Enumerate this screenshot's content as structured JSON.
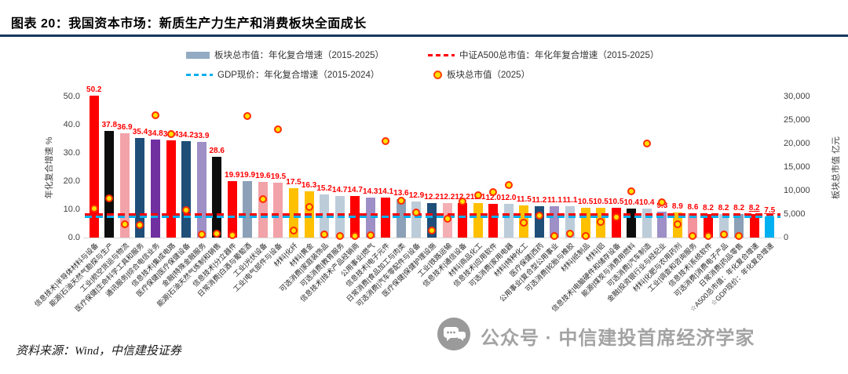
{
  "header": {
    "title": "图表 20：我国资本市场：新质生产力生产和消费板块全面成长"
  },
  "footer": {
    "source": "资料来源：Wind，中信建投证券",
    "watermark": "公众号 · 中信建投首席经济学家"
  },
  "chart_data": {
    "type": "bar",
    "title": "图表 20：我国资本市场：新质生产力生产和消费板块全面成长",
    "ylabel_left": "年化复合增速 %",
    "ylabel_right": "板块总市值 亿元",
    "ylim_left": [
      0,
      50
    ],
    "ylim_right": [
      0,
      30000
    ],
    "yticks_left": [
      "0.0",
      "10.0",
      "20.0",
      "30.0",
      "40.0",
      "50.0"
    ],
    "yticks_right": [
      "0",
      "5,000",
      "10,000",
      "15,000",
      "20,000",
      "25,000",
      "30,000"
    ],
    "grid": false,
    "legend_position": "top",
    "legend": [
      {
        "symbol": "bar-swatch",
        "color": "#92ABC3",
        "label": "板块总市值：年化复合增速（2015-2025）"
      },
      {
        "symbol": "dashed-line",
        "color": "#FF0000",
        "label": "中证A500总市值：年化年复合增速（2015-2025）"
      },
      {
        "symbol": "dashed-line",
        "color": "#00B0F0",
        "label": "GDP现价：年化复合增速（2015-2024）"
      },
      {
        "symbol": "dot",
        "color": "#FFE100",
        "label": "板块总市值（2025）"
      }
    ],
    "reference_lines": [
      {
        "name": "中证A500总市值年化复合增速",
        "value": 8.2,
        "color": "#FF0000"
      },
      {
        "name": "GDP现价年化复合增速",
        "value": 7.5,
        "color": "#00B0F0"
      }
    ],
    "value_label_color": "#FF0000",
    "bars": [
      {
        "label": "信息技术|半导体材料与设备",
        "growth": 50.2,
        "cap2025": 6200,
        "color": "#FF0000"
      },
      {
        "label": "能源|石油天然气勘探与生产",
        "growth": 37.8,
        "cap2025": 8300,
        "color": "#0D0D0D"
      },
      {
        "label": "工业|航空货运与物流",
        "growth": 36.9,
        "cap2025": 2800,
        "color": "#F2A2A9"
      },
      {
        "label": "医疗保健|生命科学工具和服务",
        "growth": 35.4,
        "cap2025": 2700,
        "color": "#1F4E79"
      },
      {
        "label": "通讯服务|综合电信业务",
        "growth": 34.8,
        "cap2025": 26000,
        "color": "#7030A0"
      },
      {
        "label": "信息技术|集成电路",
        "growth": 34.4,
        "cap2025": 22000,
        "color": "#FF0000"
      },
      {
        "label": "医疗保健|医疗保健设备",
        "growth": 34.2,
        "cap2025": 5800,
        "color": "#1F4E79"
      },
      {
        "label": "金融|特殊金融服务",
        "growth": 33.9,
        "cap2025": 700,
        "color": "#9E8FC6"
      },
      {
        "label": "能源|石油天然气炼制和销售",
        "growth": 28.6,
        "cap2025": 800,
        "color": "#0D0D0D"
      },
      {
        "label": "信息技术|分立器件",
        "growth": 19.9,
        "cap2025": 500,
        "color": "#FF0000"
      },
      {
        "label": "日常消费|白酒与葡萄酒",
        "growth": 19.9,
        "cap2025": 25800,
        "color": "#8CA0B8"
      },
      {
        "label": "工业|光伏设备",
        "growth": 19.6,
        "cap2025": 8200,
        "color": "#F2A2A9"
      },
      {
        "label": "工业|电气部件与设备",
        "growth": 19.5,
        "cap2025": 23000,
        "color": "#F2A2A9"
      },
      {
        "label": "材料|化纤",
        "growth": 17.5,
        "cap2025": 1500,
        "color": "#FFC000"
      },
      {
        "label": "材料|黄金",
        "growth": 16.3,
        "cap2025": 6500,
        "color": "#FFC000"
      },
      {
        "label": "可选消费|家庭装饰品",
        "growth": 15.2,
        "cap2025": 700,
        "color": "#BDCCD9"
      },
      {
        "label": "可选消费|教育服务",
        "growth": 14.7,
        "cap2025": 300,
        "color": "#BDCCD9"
      },
      {
        "label": "信息技术|技术产品经销商",
        "growth": 14.7,
        "cap2025": 400,
        "color": "#FF0000"
      },
      {
        "label": "公用事业|燃气",
        "growth": 14.3,
        "cap2025": 500,
        "color": "#9E8FC6"
      },
      {
        "label": "信息技术|电子元件",
        "growth": 14.1,
        "cap2025": 20500,
        "color": "#FF0000"
      },
      {
        "label": "日常消费|食品加工与肉类",
        "growth": 13.6,
        "cap2025": 7800,
        "color": "#8CA0B8"
      },
      {
        "label": "可选消费|汽车零配件与设备",
        "growth": 12.9,
        "cap2025": 5300,
        "color": "#BDCCD9"
      },
      {
        "label": "医疗保健|保健护理设施",
        "growth": 12.2,
        "cap2025": 1500,
        "color": "#1F4E79"
      },
      {
        "label": "工业|铁路运输",
        "growth": 12.2,
        "cap2025": 4000,
        "color": "#F4AFB4"
      },
      {
        "label": "信息技术|通信设备",
        "growth": 12.2,
        "cap2025": 7700,
        "color": "#FF0000"
      },
      {
        "label": "材料|商品化工",
        "growth": 12.1,
        "cap2025": 9000,
        "color": "#FFC000"
      },
      {
        "label": "信息技术|应用软件",
        "growth": 12.0,
        "cap2025": 9700,
        "color": "#FF0000"
      },
      {
        "label": "可选消费|家用电器",
        "growth": 12.0,
        "cap2025": 11200,
        "color": "#BDCCD9"
      },
      {
        "label": "材料|特种化工",
        "growth": 11.5,
        "cap2025": 3200,
        "color": "#FFC000"
      },
      {
        "label": "医疗保健|西药",
        "growth": 11.2,
        "cap2025": 4700,
        "color": "#1F4E79"
      },
      {
        "label": "公用事业|复合型公用事业",
        "growth": 11.1,
        "cap2025": 300,
        "color": "#9E8FC6"
      },
      {
        "label": "可选消费|轮胎与橡胶",
        "growth": 11.1,
        "cap2025": 800,
        "color": "#BDCCD9"
      },
      {
        "label": "材料|纸制品",
        "growth": 10.5,
        "cap2025": 400,
        "color": "#FFC000"
      },
      {
        "label": "材料|铝",
        "growth": 10.5,
        "cap2025": 3300,
        "color": "#FFC000"
      },
      {
        "label": "信息技术|电脑硬件和储存设备",
        "growth": 10.5,
        "cap2025": 4300,
        "color": "#FF0000"
      },
      {
        "label": "能源|煤炭与消费用燃料",
        "growth": 10.4,
        "cap2025": 9800,
        "color": "#0D0D0D"
      },
      {
        "label": "可选消费|汽车制造",
        "growth": 10.4,
        "cap2025": 20000,
        "color": "#BDCCD9"
      },
      {
        "label": "金融|投资银行业与经纪业",
        "growth": 9.3,
        "cap2025": 7500,
        "color": "#9E8FC6"
      },
      {
        "label": "材料|化肥与农用药剂",
        "growth": 8.9,
        "cap2025": 2800,
        "color": "#FFC000"
      },
      {
        "label": "工业|调查和咨询服务",
        "growth": 8.6,
        "cap2025": 300,
        "color": "#F4939C"
      },
      {
        "label": "信息技术|系统软件",
        "growth": 8.2,
        "cap2025": 400,
        "color": "#FF0000"
      },
      {
        "label": "可选消费|消费电子产品",
        "growth": 8.2,
        "cap2025": 700,
        "color": "#BDCCD9"
      },
      {
        "label": "日常消费|药品零售",
        "growth": 8.2,
        "cap2025": 300,
        "color": "#8CA0B8"
      },
      {
        "label": "☆A500总市值：年化复合增速",
        "growth": 8.2,
        "cap2025": null,
        "color": "#FF0000",
        "underline": true
      },
      {
        "label": "☆GDP现价：年化复合增速",
        "growth": 7.5,
        "cap2025": null,
        "color": "#00B0F0",
        "underline": true
      }
    ]
  }
}
